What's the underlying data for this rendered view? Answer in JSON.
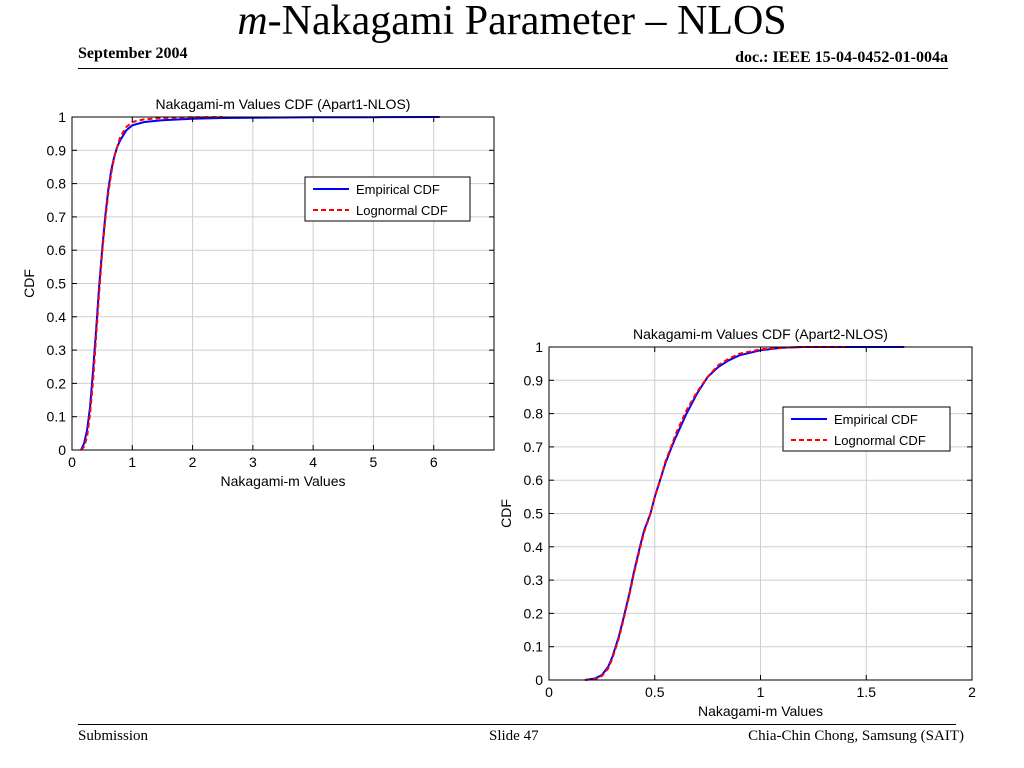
{
  "slide": {
    "title_italic": "m",
    "title_rest": "-Nakagami Parameter – NLOS",
    "date": "September 2004",
    "doc": "doc.: IEEE 15-04-0452-01-004a",
    "footer_left": "Submission",
    "footer_center": "Slide 47",
    "footer_right": "Chia-Chin Chong, Samsung (SAIT)"
  },
  "colors": {
    "empirical": "#0000ff",
    "lognormal": "#ff0000",
    "grid": "#cfcfcf"
  },
  "chart_data": [
    {
      "type": "line",
      "title": "Nakagami-m Values CDF (Apart1-NLOS)",
      "xlabel": "Nakagami-m Values",
      "ylabel": "CDF",
      "xlim": [
        0,
        7
      ],
      "ylim": [
        0,
        1
      ],
      "xticks": [
        0,
        1,
        2,
        3,
        4,
        5,
        6
      ],
      "yticks": [
        0,
        0.1,
        0.2,
        0.3,
        0.4,
        0.5,
        0.6,
        0.7,
        0.8,
        0.9,
        1
      ],
      "grid": true,
      "legend": "upper-right",
      "series": [
        {
          "name": "Empirical CDF",
          "style": "solid",
          "x": [
            0.15,
            0.2,
            0.25,
            0.3,
            0.35,
            0.4,
            0.45,
            0.5,
            0.55,
            0.6,
            0.65,
            0.7,
            0.75,
            0.8,
            0.9,
            1.0,
            1.2,
            1.5,
            2.0,
            2.5,
            3.0,
            4.0,
            5.0,
            6.1
          ],
          "y": [
            0,
            0.02,
            0.06,
            0.13,
            0.24,
            0.36,
            0.49,
            0.6,
            0.7,
            0.78,
            0.84,
            0.88,
            0.91,
            0.93,
            0.96,
            0.975,
            0.985,
            0.99,
            0.995,
            0.997,
            0.998,
            0.999,
            0.9995,
            1
          ]
        },
        {
          "name": "Lognormal CDF",
          "style": "dashed",
          "x": [
            0.15,
            0.2,
            0.25,
            0.3,
            0.35,
            0.4,
            0.45,
            0.5,
            0.55,
            0.6,
            0.65,
            0.7,
            0.75,
            0.8,
            0.9,
            1.0,
            1.2,
            1.5,
            2.0,
            2.5
          ],
          "y": [
            0,
            0.01,
            0.04,
            0.11,
            0.21,
            0.34,
            0.47,
            0.59,
            0.69,
            0.77,
            0.83,
            0.88,
            0.91,
            0.94,
            0.97,
            0.985,
            0.993,
            0.997,
            0.999,
            1
          ]
        }
      ]
    },
    {
      "type": "line",
      "title": "Nakagami-m Values CDF (Apart2-NLOS)",
      "xlabel": "Nakagami-m Values",
      "ylabel": "CDF",
      "xlim": [
        0,
        2
      ],
      "ylim": [
        0,
        1
      ],
      "xticks": [
        0,
        0.5,
        1,
        1.5,
        2
      ],
      "yticks": [
        0,
        0.1,
        0.2,
        0.3,
        0.4,
        0.5,
        0.6,
        0.7,
        0.8,
        0.9,
        1
      ],
      "grid": true,
      "legend": "upper-right",
      "series": [
        {
          "name": "Empirical CDF",
          "style": "solid",
          "x": [
            0.17,
            0.22,
            0.25,
            0.28,
            0.3,
            0.33,
            0.35,
            0.38,
            0.4,
            0.43,
            0.45,
            0.48,
            0.5,
            0.53,
            0.55,
            0.58,
            0.6,
            0.65,
            0.7,
            0.75,
            0.8,
            0.85,
            0.9,
            1.0,
            1.1,
            1.2,
            1.4,
            1.68
          ],
          "y": [
            0,
            0.005,
            0.015,
            0.04,
            0.07,
            0.13,
            0.18,
            0.26,
            0.32,
            0.4,
            0.45,
            0.5,
            0.55,
            0.61,
            0.65,
            0.7,
            0.73,
            0.8,
            0.86,
            0.91,
            0.94,
            0.96,
            0.975,
            0.99,
            0.998,
            1,
            1,
            1
          ]
        },
        {
          "name": "Lognormal CDF",
          "style": "dashed",
          "x": [
            0.17,
            0.22,
            0.25,
            0.28,
            0.3,
            0.33,
            0.35,
            0.38,
            0.4,
            0.43,
            0.45,
            0.48,
            0.5,
            0.53,
            0.55,
            0.58,
            0.6,
            0.65,
            0.7,
            0.75,
            0.8,
            0.85,
            0.9,
            1.0,
            1.1,
            1.2,
            1.4
          ],
          "y": [
            0,
            0.003,
            0.012,
            0.035,
            0.065,
            0.125,
            0.175,
            0.255,
            0.315,
            0.395,
            0.445,
            0.5,
            0.55,
            0.61,
            0.655,
            0.705,
            0.74,
            0.81,
            0.865,
            0.91,
            0.945,
            0.965,
            0.98,
            0.993,
            0.998,
            1,
            1
          ]
        }
      ]
    }
  ]
}
